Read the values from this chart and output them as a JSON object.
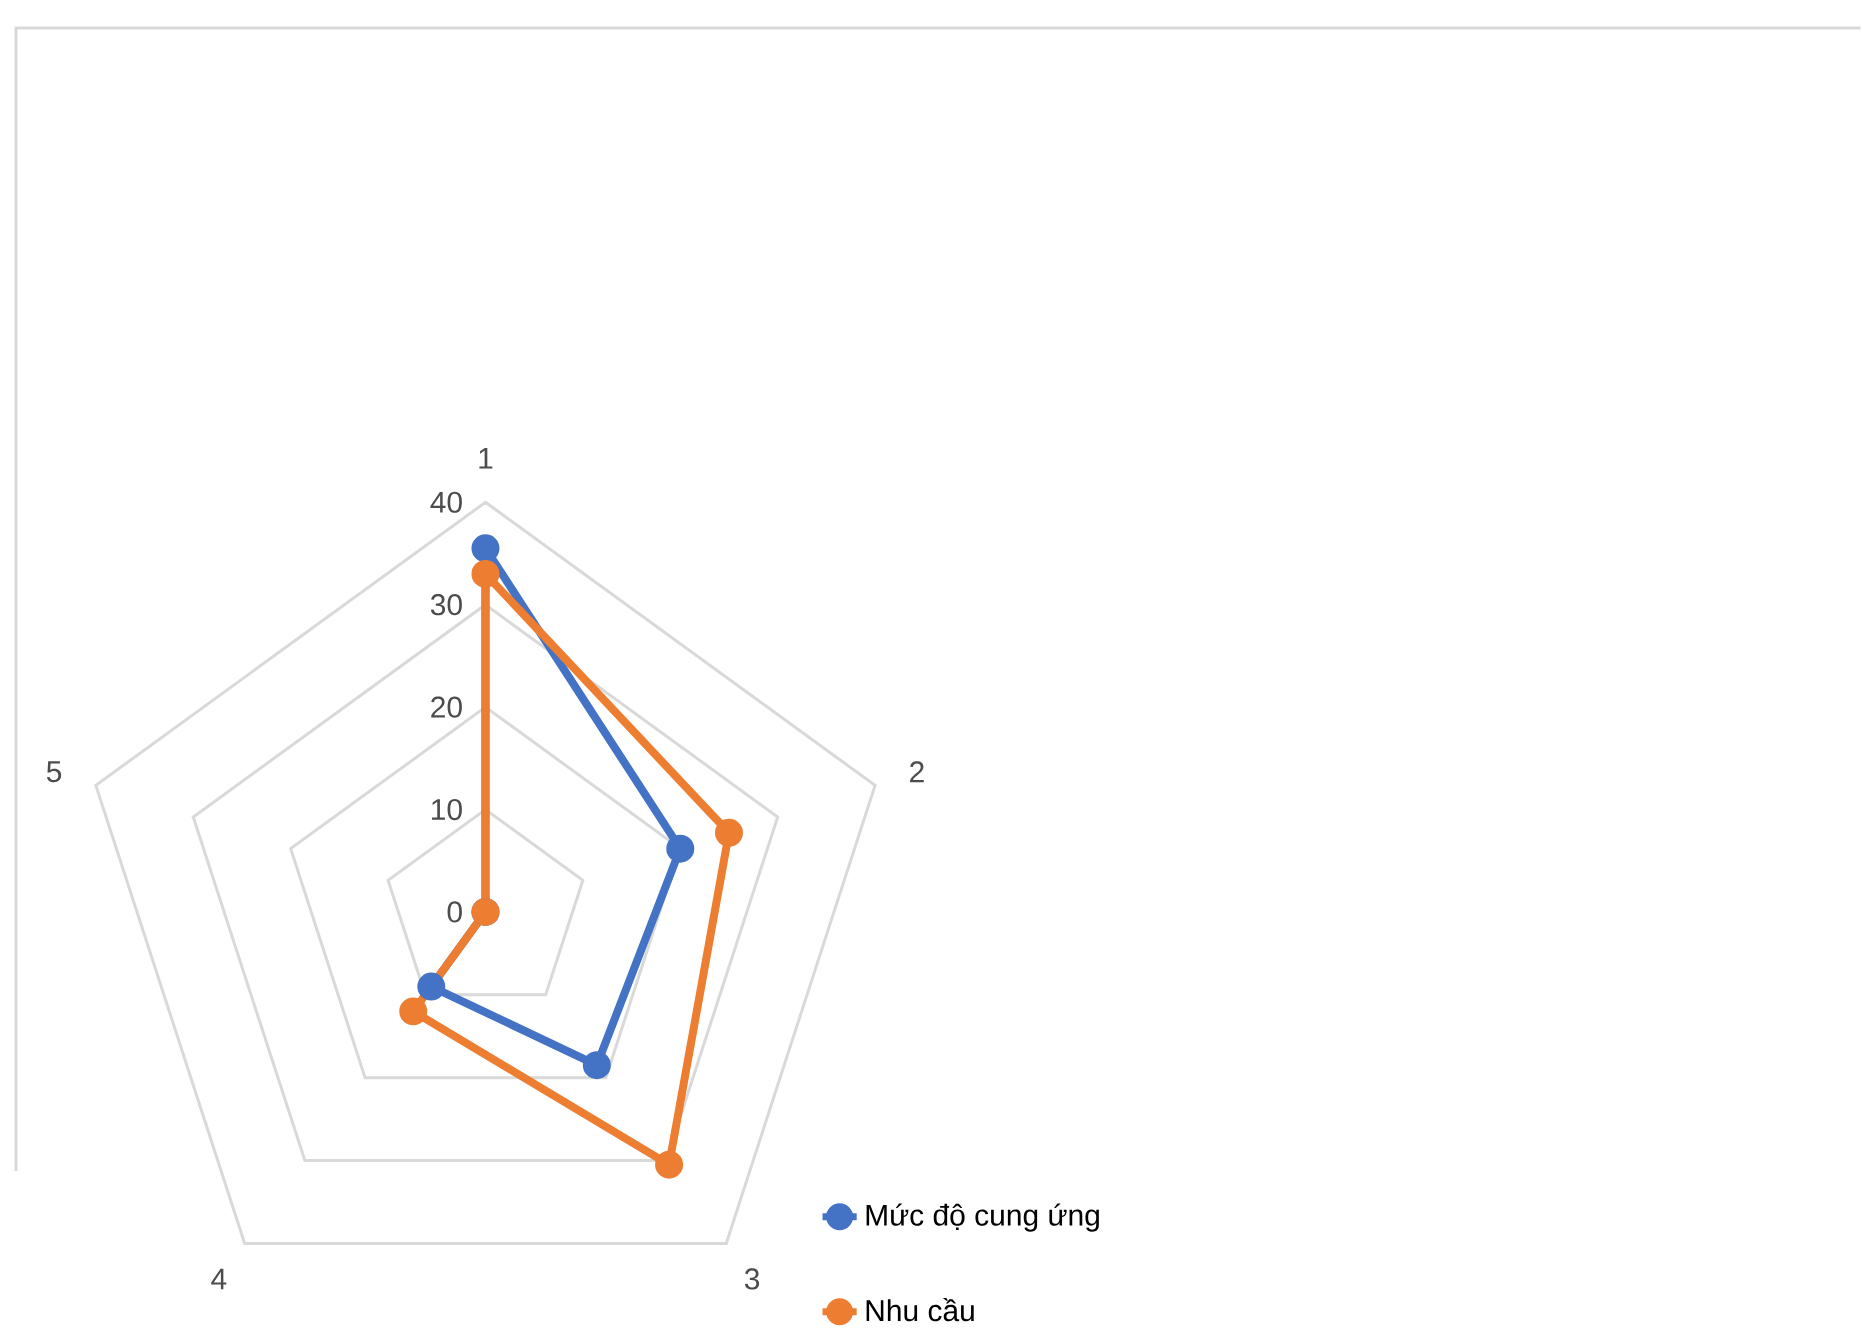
{
  "chart_data": {
    "type": "radar",
    "categories": [
      "1",
      "2",
      "3",
      "4",
      "5"
    ],
    "ylim": [
      0,
      40
    ],
    "yticks": [
      0,
      10,
      20,
      30,
      40
    ],
    "grid": true,
    "legend": "bottom right",
    "marker": "circle",
    "line_style": "solid",
    "series": [
      {
        "name": "Mức độ cung ứng",
        "color": "#4472c4",
        "values": [
          35.5,
          20,
          18.5,
          9,
          0
        ]
      },
      {
        "name": "Nhu cầu",
        "color": "#ed7d31",
        "values": [
          33,
          25,
          30.5,
          12,
          0
        ]
      }
    ]
  }
}
